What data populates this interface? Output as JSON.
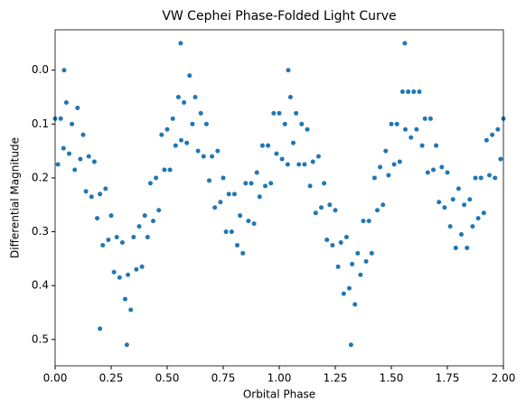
{
  "chart_data": {
    "type": "scatter",
    "title": "VW Cephei Phase-Folded Light Curve",
    "x_label": "Orbital Phase",
    "y_label": "Differential Magnitude",
    "color": "#1f77b4",
    "xlim": [
      0,
      2
    ],
    "ylim": [
      0.549,
      -0.075
    ],
    "xticks": [
      {
        "value": 0,
        "label": "0.00"
      },
      {
        "value": 0.25,
        "label": "0.25"
      },
      {
        "value": 0.5,
        "label": "0.50"
      },
      {
        "value": 0.75,
        "label": "0.75"
      },
      {
        "value": 1,
        "label": "1.00"
      },
      {
        "value": 1.25,
        "label": "1.25"
      },
      {
        "value": 1.5,
        "label": "1.50"
      },
      {
        "value": 1.75,
        "label": "1.75"
      },
      {
        "value": 2,
        "label": "2.00"
      }
    ],
    "yticks": [
      {
        "value": 0,
        "label": "0.0"
      },
      {
        "value": 0.1,
        "label": "0.1"
      },
      {
        "value": 0.2,
        "label": "0.2"
      },
      {
        "value": 0.3,
        "label": "0.3"
      },
      {
        "value": 0.4,
        "label": "0.4"
      },
      {
        "value": 0.5,
        "label": "0.5"
      }
    ],
    "x": [
      0,
      0.025,
      0.05,
      0.075,
      0.1,
      0.125,
      0.15,
      0.175,
      0.2,
      0.225,
      0.25,
      0.275,
      0.3,
      0.325,
      0.35,
      0.375,
      0.4,
      0.425,
      0.45,
      0.475,
      0.5,
      0.525,
      0.55,
      0.575,
      0.6,
      0.625,
      0.65,
      0.675,
      0.7,
      0.725,
      0.75,
      0.775,
      0.8,
      0.825,
      0.85,
      0.875,
      0.9,
      0.925,
      0.95,
      0.975,
      1,
      1.025,
      1.05,
      1.075,
      1.1,
      1.125,
      1.15,
      1.175,
      1.2,
      1.225,
      1.25,
      1.275,
      1.3,
      1.325,
      1.35,
      1.375,
      1.4,
      1.425,
      1.45,
      1.475,
      1.5,
      1.525,
      1.55,
      1.575,
      1.6,
      1.625,
      1.65,
      1.675,
      1.7,
      1.725,
      1.75,
      1.775,
      1.8,
      1.825,
      1.85,
      1.875,
      1.9,
      1.925,
      1.95,
      1.975,
      2,
      0.0125,
      0.0375,
      0.0625,
      0.0875,
      0.1125,
      0.1375,
      0.1625,
      0.1875,
      0.2125,
      0.2375,
      0.2625,
      0.2875,
      0.3125,
      0.3375,
      0.3625,
      0.3875,
      0.4125,
      0.4375,
      0.4625,
      0.4875,
      0.5125,
      0.5375,
      0.5625,
      0.5875,
      0.6125,
      0.6375,
      0.6625,
      0.6875,
      0.7125,
      0.7375,
      0.7625,
      0.7875,
      0.8125,
      0.8375,
      0.8625,
      0.8875,
      0.9125,
      0.9375,
      0.9625,
      0.9875,
      1.0125,
      1.0375,
      1.0625,
      1.0875,
      1.1125,
      1.1375,
      1.1625,
      1.1875,
      1.2125,
      1.2375,
      1.2625,
      1.2875,
      1.3125,
      1.3375,
      1.3625,
      1.3875,
      1.4125,
      1.4375,
      1.4625,
      1.4875,
      1.5125,
      1.5375,
      1.5625,
      1.5875,
      1.6125,
      1.6375,
      1.6625,
      1.6875,
      1.7125,
      1.7375,
      1.7625,
      1.7875,
      1.8125,
      1.8375,
      1.8625,
      1.8875,
      1.9125,
      1.9375,
      1.9625,
      1.9875,
      0.32,
      0.2,
      1.32,
      0.56,
      1.56,
      0.04,
      1.04
    ],
    "values": [
      0.09,
      0.09,
      0.06,
      0.1,
      0.07,
      0.12,
      0.16,
      0.17,
      0.23,
      0.22,
      0.27,
      0.31,
      0.32,
      0.38,
      0.31,
      0.29,
      0.27,
      0.21,
      0.2,
      0.12,
      0.11,
      0.09,
      0.05,
      0.06,
      0.01,
      0.05,
      0.08,
      0.1,
      0.16,
      0.15,
      0.2,
      0.23,
      0.23,
      0.27,
      0.21,
      0.21,
      0.19,
      0.14,
      0.14,
      0.08,
      0.08,
      0.1,
      0.05,
      0.08,
      0.1,
      0.11,
      0.17,
      0.16,
      0.21,
      0.25,
      0.26,
      0.32,
      0.31,
      0.36,
      0.34,
      0.28,
      0.28,
      0.2,
      0.18,
      0.15,
      0.1,
      0.1,
      0.04,
      0.04,
      0.04,
      0.04,
      0.09,
      0.09,
      0.14,
      0.18,
      0.19,
      0.24,
      0.22,
      0.25,
      0.24,
      0.2,
      0.2,
      0.13,
      0.12,
      0.11,
      0.09,
      0.175,
      0.145,
      0.155,
      0.185,
      0.165,
      0.225,
      0.235,
      0.275,
      0.325,
      0.315,
      0.375,
      0.385,
      0.425,
      0.445,
      0.37,
      0.365,
      0.31,
      0.28,
      0.26,
      0.185,
      0.185,
      0.14,
      0.13,
      0.135,
      0.1,
      0.15,
      0.16,
      0.205,
      0.255,
      0.245,
      0.3,
      0.3,
      0.325,
      0.34,
      0.28,
      0.285,
      0.235,
      0.215,
      0.21,
      0.155,
      0.165,
      0.175,
      0.135,
      0.175,
      0.175,
      0.215,
      0.265,
      0.255,
      0.315,
      0.325,
      0.365,
      0.415,
      0.405,
      0.435,
      0.38,
      0.355,
      0.34,
      0.26,
      0.25,
      0.195,
      0.175,
      0.17,
      0.11,
      0.125,
      0.11,
      0.14,
      0.19,
      0.185,
      0.245,
      0.255,
      0.29,
      0.33,
      0.305,
      0.33,
      0.29,
      0.275,
      0.265,
      0.195,
      0.2,
      0.165,
      0.51,
      0.48,
      0.51,
      -0.05,
      -0.05,
      0,
      0
    ]
  }
}
